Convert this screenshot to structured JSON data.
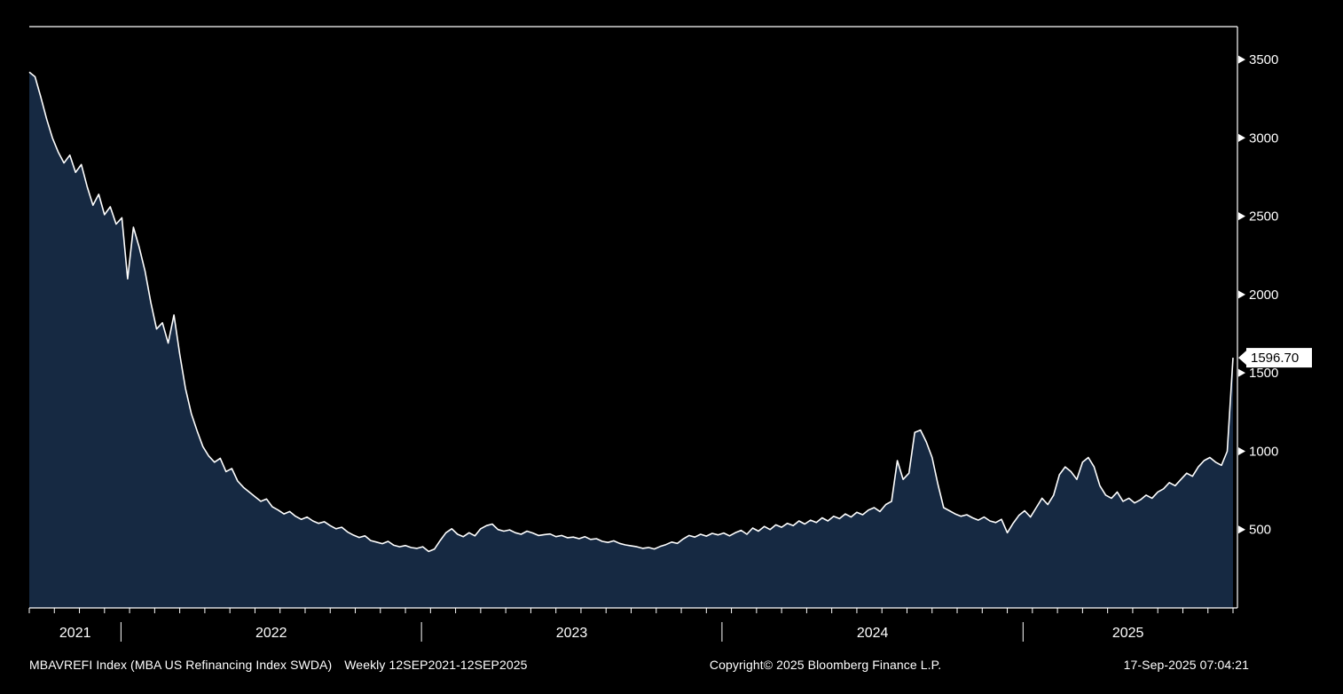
{
  "chart_data": {
    "type": "area",
    "title": "MBA US Refinancing Index SWDA",
    "security": "MBAVREFI Index",
    "frequency": "Weekly",
    "date_range": "12SEP2021-12SEP2025",
    "x_start": "12SEP2021",
    "x_end": "12SEP2025",
    "ylabel": "",
    "xlabel": "",
    "ylim": [
      0,
      3710
    ],
    "y_ticks": [
      500,
      1000,
      1500,
      2000,
      2500,
      3000,
      3500
    ],
    "year_labels": [
      "2021",
      "2022",
      "2023",
      "2024",
      "2025"
    ],
    "year_boundaries_weeks": [
      15.9,
      68.0,
      120.1,
      172.3
    ],
    "total_weeks": 208.7,
    "month_tick_count": 48,
    "last_value": 1596.7,
    "last_value_label": "1596.70",
    "colors": {
      "background": "#000000",
      "line": "#ffffff",
      "fill": "#162942",
      "axis": "#ffffff",
      "label_box_bg": "#ffffff",
      "label_box_text": "#000000"
    },
    "values": [
      3420,
      3390,
      3260,
      3120,
      3000,
      2910,
      2840,
      2890,
      2780,
      2830,
      2690,
      2570,
      2640,
      2510,
      2560,
      2450,
      2490,
      2100,
      2430,
      2300,
      2150,
      1950,
      1780,
      1820,
      1690,
      1870,
      1620,
      1400,
      1240,
      1130,
      1030,
      970,
      930,
      955,
      870,
      890,
      810,
      770,
      740,
      710,
      680,
      695,
      645,
      625,
      600,
      615,
      585,
      565,
      580,
      555,
      540,
      550,
      525,
      505,
      515,
      485,
      465,
      450,
      460,
      430,
      420,
      410,
      425,
      400,
      390,
      398,
      385,
      380,
      390,
      360,
      375,
      430,
      480,
      505,
      470,
      455,
      480,
      460,
      505,
      525,
      535,
      500,
      490,
      498,
      480,
      470,
      490,
      478,
      462,
      468,
      472,
      455,
      462,
      448,
      452,
      442,
      455,
      437,
      442,
      425,
      418,
      428,
      412,
      402,
      396,
      390,
      380,
      386,
      376,
      392,
      404,
      420,
      412,
      440,
      462,
      452,
      470,
      458,
      476,
      466,
      478,
      460,
      480,
      495,
      470,
      510,
      490,
      520,
      500,
      530,
      515,
      540,
      525,
      555,
      535,
      560,
      545,
      575,
      555,
      585,
      570,
      600,
      580,
      610,
      595,
      625,
      640,
      615,
      660,
      680,
      940,
      820,
      860,
      1120,
      1135,
      1060,
      960,
      790,
      640,
      620,
      600,
      585,
      595,
      575,
      560,
      580,
      555,
      545,
      565,
      480,
      540,
      590,
      620,
      580,
      640,
      700,
      660,
      720,
      850,
      900,
      870,
      820,
      930,
      960,
      900,
      780,
      720,
      700,
      740,
      680,
      700,
      670,
      690,
      720,
      700,
      740,
      760,
      800,
      780,
      820,
      860,
      840,
      900,
      940,
      960,
      930,
      910,
      1000,
      1596.7
    ]
  },
  "footer": {
    "security": "MBAVREFI Index (MBA US Refinancing Index SWDA)",
    "range": "Weekly 12SEP2021-12SEP2025",
    "copyright": "Copyright© 2025 Bloomberg Finance L.P.",
    "timestamp": "17-Sep-2025 07:04:21"
  }
}
